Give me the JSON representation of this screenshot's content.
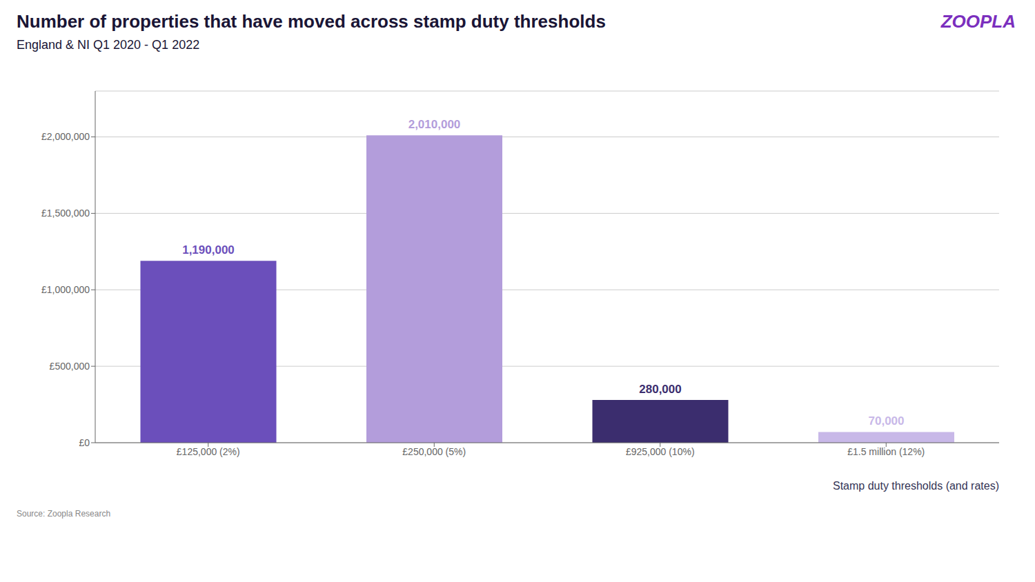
{
  "chart_data": {
    "type": "bar",
    "title": "Number of properties that have moved across stamp duty thresholds",
    "subtitle": "England & NI Q1 2020 - Q1 2022",
    "categories": [
      "£125,000 (2%)",
      "£250,000 (5%)",
      "£925,000 (10%)",
      "£1.5 million (12%)"
    ],
    "values": [
      1190000,
      2010000,
      280000,
      70000
    ],
    "value_labels": [
      "1,190,000",
      "2,010,000",
      "280,000",
      "70,000"
    ],
    "colors": [
      "#6b4fbb",
      "#b39ddb",
      "#3b2d6e",
      "#c8b8e8"
    ],
    "x_label": "Stamp duty thresholds (and rates)",
    "ylim": [
      0,
      2300000
    ],
    "yticks": [
      {
        "value": 0,
        "label": "£0"
      },
      {
        "value": 500000,
        "label": "£500,000"
      },
      {
        "value": 1000000,
        "label": "£1,000,000"
      },
      {
        "value": 1500000,
        "label": "£1,500,000"
      },
      {
        "value": 2000000,
        "label": "£2,000,000"
      }
    ],
    "grid": true,
    "data_labels": true,
    "annotations": [
      "ZOOPLA",
      "Source: Zoopla Research"
    ]
  }
}
